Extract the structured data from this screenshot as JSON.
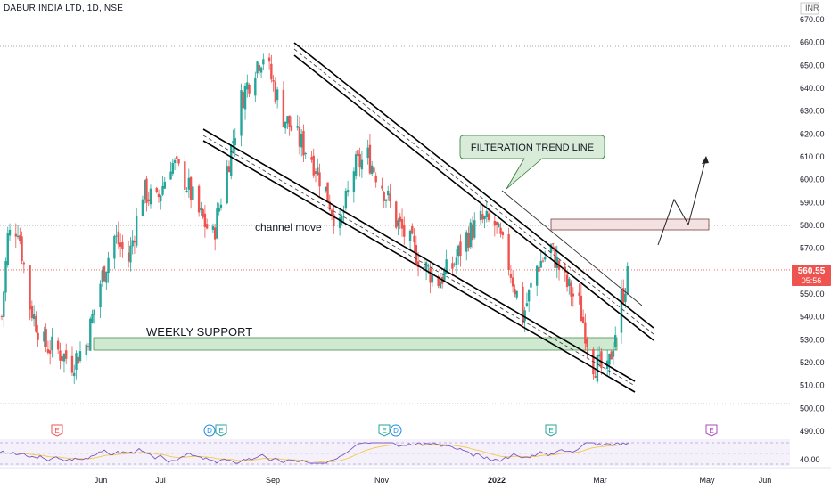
{
  "header": {
    "symbol_title": "DABUR INDIA LTD, 1D, NSE",
    "currency": "INR"
  },
  "price_axis": {
    "ticks": [
      "670.00",
      "660.00",
      "650.00",
      "640.00",
      "630.00",
      "620.00",
      "610.00",
      "600.00",
      "590.00",
      "580.00",
      "570.00",
      "560.00",
      "550.00",
      "540.00",
      "530.00",
      "520.00",
      "510.00",
      "500.00",
      "490.00"
    ],
    "current_price": "560.55",
    "countdown": "05:56",
    "rsi_tick": "40.00"
  },
  "time_axis": {
    "ticks": [
      "Jun",
      "Jul",
      "Sep",
      "Nov",
      "2022",
      "Mar",
      "May",
      "Jun"
    ]
  },
  "annotations": {
    "callout": "FILTERATION TREND LINE",
    "channel": "channel move",
    "support": "WEEKLY SUPPORT"
  },
  "event_markers": [
    "E",
    "D",
    "E",
    "E",
    "D",
    "E",
    "E"
  ],
  "colors": {
    "up": "#26a69a",
    "down": "#ef5350",
    "support_zone": "#c8e6c9",
    "resistance_zone": "#f3dede",
    "price_label": "#ef5350",
    "rsi_line": "#7e57c2",
    "rsi_ma": "#f5c842"
  },
  "chart_data": {
    "type": "candlestick",
    "title": "DABUR INDIA LTD, 1D, NSE",
    "ylim": [
      490,
      672
    ],
    "y_unit": "INR",
    "current_price": 560.55,
    "close_path_approx": [
      [
        "2021-05-10",
        540
      ],
      [
        "2021-05-13",
        575
      ],
      [
        "2021-05-18",
        580
      ],
      [
        "2021-05-24",
        545
      ],
      [
        "2021-05-31",
        528
      ],
      [
        "2021-06-07",
        525
      ],
      [
        "2021-06-14",
        520
      ],
      [
        "2021-06-21",
        528
      ],
      [
        "2021-06-28",
        555
      ],
      [
        "2021-07-05",
        575
      ],
      [
        "2021-07-12",
        565
      ],
      [
        "2021-07-19",
        595
      ],
      [
        "2021-07-26",
        590
      ],
      [
        "2021-08-02",
        608
      ],
      [
        "2021-08-09",
        600
      ],
      [
        "2021-08-16",
        585
      ],
      [
        "2021-08-23",
        575
      ],
      [
        "2021-08-30",
        605
      ],
      [
        "2021-09-06",
        635
      ],
      [
        "2021-09-13",
        650
      ],
      [
        "2021-09-17",
        655
      ],
      [
        "2021-09-27",
        628
      ],
      [
        "2021-10-04",
        618
      ],
      [
        "2021-10-11",
        610
      ],
      [
        "2021-10-18",
        595
      ],
      [
        "2021-10-25",
        578
      ],
      [
        "2021-11-01",
        605
      ],
      [
        "2021-11-08",
        610
      ],
      [
        "2021-11-15",
        598
      ],
      [
        "2021-11-22",
        582
      ],
      [
        "2021-11-29",
        572
      ],
      [
        "2021-12-06",
        562
      ],
      [
        "2021-12-13",
        556
      ],
      [
        "2021-12-20",
        562
      ],
      [
        "2021-12-27",
        575
      ],
      [
        "2022-01-03",
        582
      ],
      [
        "2022-01-10",
        580
      ],
      [
        "2022-01-17",
        563
      ],
      [
        "2022-01-24",
        540
      ],
      [
        "2022-01-31",
        562
      ],
      [
        "2022-02-07",
        570
      ],
      [
        "2022-02-14",
        555
      ],
      [
        "2022-02-21",
        545
      ],
      [
        "2022-02-28",
        520
      ],
      [
        "2022-03-07",
        515
      ],
      [
        "2022-03-14",
        548
      ],
      [
        "2022-03-18",
        560.55
      ]
    ],
    "support_zone": {
      "label": "WEEKLY SUPPORT",
      "low": 525,
      "high": 531
    },
    "resistance_zone": {
      "low": 578,
      "high": 582
    },
    "horizontal_levels": [
      580,
      560.55,
      502
    ],
    "indicator": {
      "name": "RSI",
      "tick": 40
    }
  }
}
